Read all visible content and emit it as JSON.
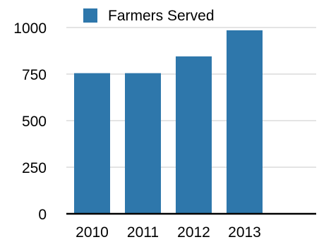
{
  "chart_data": {
    "type": "bar",
    "categories": [
      "2010",
      "2011",
      "2012",
      "2013"
    ],
    "series": [
      {
        "name": "Farmers Served",
        "values": [
          755,
          755,
          845,
          985
        ],
        "color": "#2e77ab"
      }
    ],
    "ylim": [
      0,
      1000
    ],
    "yticks": [
      "0",
      "250",
      "500",
      "750",
      "1000"
    ],
    "grid": true,
    "legend": "top"
  }
}
